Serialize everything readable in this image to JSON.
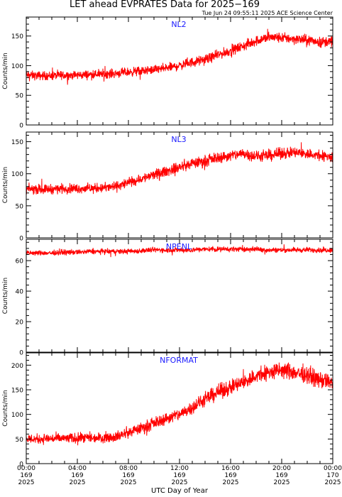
{
  "header": {
    "title": "LET ahead EVPRATES Data for 2025−169",
    "timestamp": "Tue Jun 24 09:55:11 2025 ACE Science Center"
  },
  "chart_data": [
    {
      "type": "line",
      "panel_label": "NL2",
      "ylabel": "Counts/min",
      "ylim": [
        0,
        182
      ],
      "yticks": [
        0,
        50,
        100,
        150
      ],
      "color": "#ff0000",
      "noise": 8,
      "hourly_mean": [
        84,
        83,
        83,
        84,
        84,
        85,
        86,
        87,
        89,
        91,
        93,
        96,
        100,
        106,
        110,
        118,
        125,
        133,
        142,
        148,
        147,
        145,
        143,
        140,
        141
      ]
    },
    {
      "type": "line",
      "panel_label": "NL3",
      "ylabel": "Counts/min",
      "ylim": [
        0,
        165
      ],
      "yticks": [
        0,
        50,
        100,
        150
      ],
      "color": "#ff0000",
      "noise": 8,
      "hourly_mean": [
        76,
        76,
        76,
        77,
        77,
        77,
        78,
        80,
        86,
        92,
        98,
        104,
        110,
        116,
        120,
        125,
        128,
        132,
        127,
        128,
        132,
        133,
        131,
        128,
        126
      ]
    },
    {
      "type": "line",
      "panel_label": "NPENL",
      "ylabel": "Counts/min",
      "ylim": [
        0,
        74
      ],
      "yticks": [
        0,
        20,
        40,
        60
      ],
      "color": "#ff0000",
      "noise": 1.8,
      "hourly_mean": [
        65,
        65,
        65,
        65.5,
        65.5,
        66,
        66,
        66,
        66,
        66.5,
        67,
        67,
        67,
        67,
        67.5,
        67.5,
        67.5,
        67.5,
        67.5,
        67,
        67,
        67,
        67,
        67,
        67
      ]
    },
    {
      "type": "line",
      "panel_label": "NFORMAT",
      "ylabel": "Counts/min",
      "ylim": [
        0,
        225
      ],
      "yticks": [
        0,
        50,
        100,
        150,
        200
      ],
      "color": "#ff0000",
      "noise": 11,
      "hourly_mean": [
        50,
        50,
        51,
        51,
        52,
        52,
        53,
        55,
        63,
        72,
        82,
        92,
        100,
        115,
        130,
        145,
        155,
        165,
        178,
        185,
        190,
        185,
        180,
        170,
        165
      ]
    }
  ],
  "x_axis": {
    "label": "UTC Day of Year",
    "range_hours": [
      0,
      24
    ],
    "ticks": [
      {
        "hour": 0,
        "time": "00:00",
        "doy": "169",
        "year": "2025"
      },
      {
        "hour": 4,
        "time": "04:00",
        "doy": "169",
        "year": "2025"
      },
      {
        "hour": 8,
        "time": "08:00",
        "doy": "169",
        "year": "2025"
      },
      {
        "hour": 12,
        "time": "12:00",
        "doy": "169",
        "year": "2025"
      },
      {
        "hour": 16,
        "time": "16:00",
        "doy": "169",
        "year": "2025"
      },
      {
        "hour": 20,
        "time": "20:00",
        "doy": "169",
        "year": "2025"
      },
      {
        "hour": 24,
        "time": "00:00",
        "doy": "170",
        "year": "2025"
      }
    ]
  }
}
